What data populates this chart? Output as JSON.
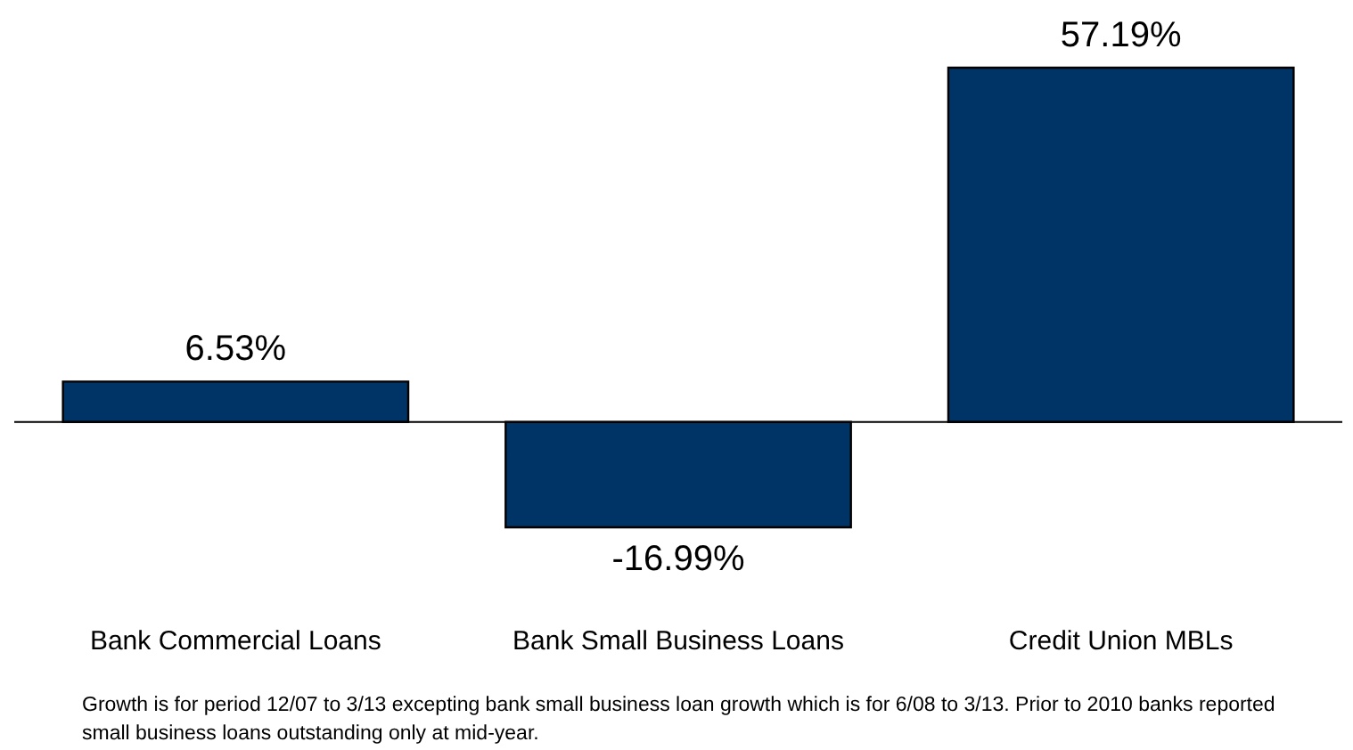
{
  "chart_data": {
    "type": "bar",
    "categories": [
      "Bank Commercial Loans",
      "Bank Small Business Loans",
      "Credit Union MBLs"
    ],
    "values": [
      6.53,
      -16.99,
      57.19
    ],
    "value_labels": [
      "6.53%",
      "-16.99%",
      "57.19%"
    ],
    "color": "#003366",
    "annotations": [
      "Growth is for period 12/07 to 3/13 excepting bank small business loan growth which is for 6/08 to 3/13.  Prior to 2010 banks reported small business loans outstanding only at mid-year."
    ]
  }
}
